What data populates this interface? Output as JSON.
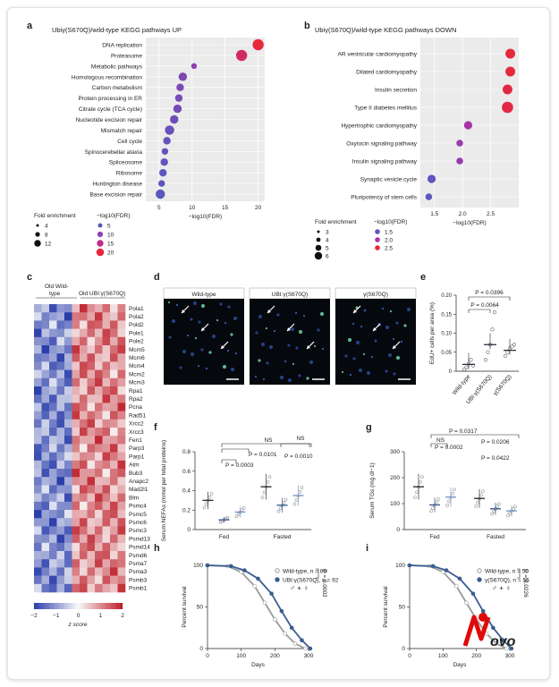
{
  "labels": {
    "a": "a",
    "b": "b",
    "c": "c",
    "d": "d",
    "e": "e",
    "f": "f",
    "g": "g",
    "h": "h",
    "i": "i"
  },
  "logo": {
    "text": "Novo"
  },
  "chart_data": [
    {
      "panel": "a",
      "type": "scatter",
      "title": "Ubiγ(S670Q)/wild-type KEGG pathways UP",
      "xlabel": "−log10(FDR)",
      "xlim": [
        3,
        21
      ],
      "xticks": [
        5,
        10,
        15,
        20
      ],
      "categories": [
        "DNA replication",
        "Proteasome",
        "Metabolic pathways",
        "Homologous recombination",
        "Carbon metabolism",
        "Protein processing in ER",
        "Citrate cycle (TCA cycle)",
        "Nucleotide excision repair",
        "Mismatch repair",
        "Cell cycle",
        "Spinocerebellar ataxia",
        "Spliceosome",
        "Ribosome",
        "Huntington disease",
        "Base excision repair"
      ],
      "x": [
        20,
        17.5,
        10.3,
        8.6,
        8.2,
        8.0,
        7.8,
        7.3,
        6.6,
        6.2,
        5.9,
        5.8,
        5.6,
        5.4,
        5.2
      ],
      "fold": [
        10,
        10,
        4,
        7,
        6,
        6,
        7,
        7,
        8,
        6,
        5,
        6,
        6,
        5,
        8
      ],
      "legend": {
        "fold_title": "Fold enrichment",
        "fold_values": [
          "4",
          "8",
          "12"
        ],
        "fdr_title": "−log10(FDR)",
        "fdr_values": [
          "5",
          "10",
          "15",
          "20"
        ]
      }
    },
    {
      "panel": "b",
      "type": "scatter",
      "title": "Ubiγ(S670Q)/wild-type KEGG pathways DOWN",
      "xlabel": "−log10(FDR)",
      "xlim": [
        1.25,
        3.0
      ],
      "xticks": [
        1.5,
        2.0,
        2.5
      ],
      "categories": [
        "AR ventricular cardiomyopathy",
        "Dilated cardiomyopathy",
        "Insulin secretion",
        "Type II diabetes mellitus",
        "Hypertrophic cardiomyopathy",
        "Oxytocin signaling pathway",
        "Insulin signaling pathway",
        "Synaptic vesicle cycle",
        "Pluripotency of stem cells"
      ],
      "x": [
        2.85,
        2.85,
        2.8,
        2.8,
        2.1,
        1.95,
        1.95,
        1.45,
        1.4
      ],
      "fold": [
        5,
        5,
        5,
        6,
        4,
        3,
        3,
        4,
        3
      ],
      "legend": {
        "fold_title": "Fold enrichment",
        "fold_values": [
          "3",
          "4",
          "5",
          "6"
        ],
        "fdr_title": "−log10(FDR)",
        "fdr_values": [
          "1.5",
          "2.0",
          "2.5"
        ]
      }
    },
    {
      "panel": "c",
      "type": "heatmap",
      "columns": [
        "Old Wild-type",
        "Old UBI:γ(S670Q)"
      ],
      "genes": [
        "Pola1",
        "Pola2",
        "Pold2",
        "Pole1",
        "Pole2",
        "Mcm5",
        "Mcm6",
        "Mcm4",
        "Mcm2",
        "Mcm3",
        "Rpa1",
        "Rpa2",
        "Pcna",
        "Rad51",
        "Xrcc2",
        "Xrcc3",
        "Fen1",
        "Parp3",
        "Parp1",
        "Atm",
        "Bub3",
        "Anapc2",
        "Mad2l1",
        "Blm",
        "Psmc4",
        "Psmc5",
        "Psmc6",
        "Psmc3",
        "Psmd13",
        "Psmd14",
        "Psmd6",
        "Psma7",
        "Psma3",
        "Psmb3",
        "Psmb1"
      ],
      "colorbar": {
        "ticks": [
          "−2",
          "−1",
          "0",
          "1",
          "2"
        ],
        "label": "z score"
      }
    },
    {
      "panel": "e",
      "type": "scatter",
      "ylabel": "EdU+ cells per area (%)",
      "ylim": [
        0,
        0.2
      ],
      "yticks": [
        0,
        0.05,
        0.1,
        0.15,
        0.2
      ],
      "categories": [
        "Wild-type",
        "UBI:γ(S670Q)",
        "γ(S670Q)"
      ],
      "means": [
        0.018,
        0.07,
        0.055
      ],
      "points": [
        [
          0.005,
          0.01,
          0.02,
          0.03,
          0.015
        ],
        [
          0.03,
          0.05,
          0.07,
          0.11,
          0.155
        ],
        [
          0.04,
          0.05,
          0.06,
          0.065,
          0.07
        ]
      ],
      "annotations": [
        "P = 0.0396",
        "P = 0.0064"
      ]
    },
    {
      "panel": "f",
      "type": "scatter",
      "ylabel": "Serum NEFAs (mmol per total proteins)",
      "ylim": [
        0,
        0.8
      ],
      "yticks": [
        0,
        0.2,
        0.4,
        0.6,
        0.8
      ],
      "categories": [
        "Fed",
        "Fasted"
      ],
      "means": [
        [
          0.3,
          0.1,
          0.18
        ],
        [
          0.44,
          0.25,
          0.35
        ]
      ],
      "annotations": [
        "P = 0.0003",
        "P = 0.0101",
        "NS",
        "P = 0.0010",
        "NS"
      ]
    },
    {
      "panel": "g",
      "type": "scatter",
      "ylabel": "Serum TGs (mg dl−1)",
      "ylim": [
        0,
        300
      ],
      "yticks": [
        0,
        100,
        200,
        300
      ],
      "categories": [
        "Fed",
        "Fasted"
      ],
      "means": [
        [
          165,
          95,
          125
        ],
        [
          120,
          80,
          72
        ]
      ],
      "annotations": [
        "P = 0.0317",
        "P = 0.0002",
        "P = 0.0206",
        "NS",
        "P = 0.0422"
      ]
    },
    {
      "panel": "h",
      "type": "line",
      "xlabel": "Days",
      "ylabel": "Percent survival",
      "xlim": [
        0,
        300
      ],
      "xticks": [
        0,
        100,
        200,
        300
      ],
      "ylim": [
        0,
        100
      ],
      "yticks": [
        0,
        50,
        100
      ],
      "series": [
        {
          "name": "Wild-type, n = 80",
          "color": "#9a9a9a"
        },
        {
          "name": "UBI:γ(S670Q), n = 92",
          "color": "#3a5d8f"
        }
      ],
      "sex": "♂ + ♀",
      "pvalue": "P = 0.0002"
    },
    {
      "panel": "i",
      "type": "line",
      "xlabel": "Days",
      "ylabel": "Percent survival",
      "xlim": [
        0,
        300
      ],
      "xticks": [
        0,
        100,
        200,
        300
      ],
      "ylim": [
        0,
        100
      ],
      "yticks": [
        0,
        50,
        100
      ],
      "series": [
        {
          "name": "Wild-type, n = 50",
          "color": "#9a9a9a"
        },
        {
          "name": "γ(S670Q), n = 55",
          "color": "#3a5d8f"
        }
      ],
      "sex": "♂ + ♀",
      "pvalue": "P = 0.0226"
    }
  ],
  "micro": {
    "titles": [
      "Wild-type",
      "UBI:γ(S670Q)",
      "γ(S670Q)"
    ]
  }
}
